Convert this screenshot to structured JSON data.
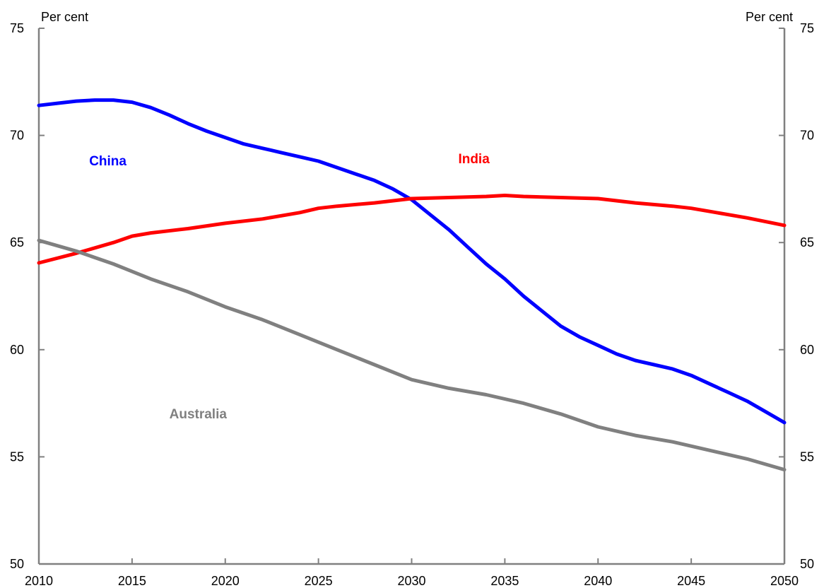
{
  "chart_data": {
    "type": "line",
    "left_unit": "Per cent",
    "right_unit": "Per cent",
    "ylim": [
      50,
      75
    ],
    "xlim": [
      2010,
      2050
    ],
    "y_ticks": [
      "50",
      "55",
      "60",
      "65",
      "70",
      "75"
    ],
    "x_ticks": [
      "2010",
      "2015",
      "2020",
      "2025",
      "2030",
      "2035",
      "2040",
      "2045",
      "2050"
    ],
    "grid": false,
    "series": [
      {
        "name": "China",
        "color": "#0000ff",
        "x": [
          2010,
          2011,
          2012,
          2013,
          2014,
          2015,
          2016,
          2017,
          2018,
          2019,
          2020,
          2021,
          2022,
          2023,
          2024,
          2025,
          2026,
          2027,
          2028,
          2029,
          2030,
          2031,
          2032,
          2033,
          2034,
          2035,
          2036,
          2037,
          2038,
          2039,
          2040,
          2041,
          2042,
          2043,
          2044,
          2045,
          2046,
          2047,
          2048,
          2049,
          2050
        ],
        "values": [
          71.4,
          71.5,
          71.6,
          71.65,
          71.65,
          71.55,
          71.3,
          70.95,
          70.55,
          70.2,
          69.9,
          69.6,
          69.4,
          69.2,
          69.0,
          68.8,
          68.5,
          68.2,
          67.9,
          67.5,
          67.0,
          66.3,
          65.6,
          64.8,
          64.0,
          63.3,
          62.5,
          61.8,
          61.1,
          60.6,
          60.2,
          59.8,
          59.5,
          59.3,
          59.1,
          58.8,
          58.4,
          58.0,
          57.6,
          57.1,
          56.6
        ]
      },
      {
        "name": "India",
        "color": "#ff0000",
        "x": [
          2010,
          2012,
          2014,
          2015,
          2016,
          2018,
          2020,
          2022,
          2024,
          2025,
          2026,
          2028,
          2030,
          2032,
          2034,
          2035,
          2036,
          2038,
          2040,
          2042,
          2044,
          2045,
          2046,
          2048,
          2050
        ],
        "values": [
          64.05,
          64.5,
          65.0,
          65.3,
          65.45,
          65.65,
          65.9,
          66.1,
          66.4,
          66.6,
          66.7,
          66.85,
          67.05,
          67.1,
          67.15,
          67.2,
          67.15,
          67.1,
          67.05,
          66.85,
          66.7,
          66.6,
          66.45,
          66.15,
          65.8
        ]
      },
      {
        "name": "Australia",
        "color": "#808080",
        "x": [
          2010,
          2012,
          2014,
          2016,
          2018,
          2020,
          2022,
          2024,
          2026,
          2028,
          2030,
          2032,
          2034,
          2036,
          2038,
          2040,
          2042,
          2044,
          2046,
          2048,
          2050
        ],
        "values": [
          65.1,
          64.6,
          64.0,
          63.3,
          62.7,
          62.0,
          61.4,
          60.7,
          60.0,
          59.3,
          58.6,
          58.2,
          57.9,
          57.5,
          57.0,
          56.4,
          56.0,
          55.7,
          55.3,
          54.9,
          54.4
        ]
      }
    ],
    "annotations": [
      {
        "text": "China",
        "color": "#0000ff",
        "x": 2012.7,
        "y": 68.6
      },
      {
        "text": "India",
        "color": "#ff0000",
        "x": 2032.5,
        "y": 68.7
      },
      {
        "text": "Australia",
        "color": "#808080",
        "x": 2017.0,
        "y": 56.8
      }
    ]
  }
}
